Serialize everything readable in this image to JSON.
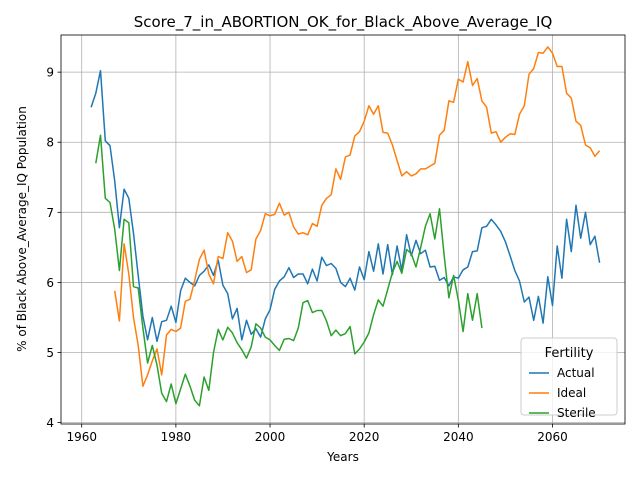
{
  "chart_data": {
    "type": "line",
    "title": "Score_7_in_ABORTION_OK_for_Black_Above_Average_IQ",
    "xlabel": "Years",
    "ylabel": "% of Black Above_Average_IQ Population",
    "xlim": [
      1955.6,
      2075.4
    ],
    "ylim": [
      3.98,
      9.53
    ],
    "xticks": [
      1960,
      1980,
      2000,
      2020,
      2040,
      2060
    ],
    "yticks": [
      4,
      5,
      6,
      7,
      8,
      9
    ],
    "grid": true,
    "legend": {
      "title": "Fertility",
      "placement": "lower right"
    },
    "series": [
      {
        "name": "Actual",
        "color": "#1f77b4",
        "x": [
          1962,
          1963,
          1964,
          1965,
          1966,
          1967,
          1968,
          1969,
          1970,
          1971,
          1972,
          1973,
          1974,
          1975,
          1976,
          1977,
          1978,
          1979,
          1980,
          1981,
          1982,
          1983,
          1984,
          1985,
          1986,
          1987,
          1988,
          1989,
          1990,
          1991,
          1992,
          1993,
          1994,
          1995,
          1996,
          1997,
          1998,
          1999,
          2000,
          2001,
          2002,
          2003,
          2004,
          2005,
          2006,
          2007,
          2008,
          2009,
          2010,
          2011,
          2012,
          2013,
          2014,
          2015,
          2016,
          2017,
          2018,
          2019,
          2020,
          2021,
          2022,
          2023,
          2024,
          2025,
          2026,
          2027,
          2028,
          2029,
          2030,
          2031,
          2032,
          2033,
          2034,
          2035,
          2036,
          2037,
          2038,
          2039,
          2040,
          2041,
          2042,
          2043,
          2044,
          2045,
          2046,
          2047,
          2048,
          2049,
          2050,
          2051,
          2052,
          2053,
          2054,
          2055,
          2056,
          2057,
          2058,
          2059,
          2060,
          2061,
          2062,
          2063,
          2064,
          2065,
          2066,
          2067,
          2068,
          2069,
          2070
        ],
        "y": [
          8.5,
          8.7,
          9.02,
          8.02,
          7.95,
          7.45,
          6.78,
          7.33,
          7.2,
          6.7,
          6.1,
          5.52,
          5.18,
          5.5,
          5.16,
          5.44,
          5.46,
          5.66,
          5.43,
          5.88,
          6.06,
          6.0,
          5.95,
          6.1,
          6.16,
          6.25,
          6.1,
          6.32,
          5.96,
          5.84,
          5.48,
          5.63,
          5.18,
          5.46,
          5.26,
          5.34,
          5.22,
          5.48,
          5.61,
          5.9,
          6.02,
          6.08,
          6.21,
          6.07,
          6.12,
          6.12,
          5.98,
          6.19,
          6.02,
          6.36,
          6.24,
          6.27,
          6.2,
          6.0,
          5.94,
          6.06,
          5.89,
          6.22,
          6.04,
          6.44,
          6.16,
          6.55,
          6.12,
          6.54,
          6.11,
          6.52,
          6.17,
          6.68,
          6.38,
          6.6,
          6.41,
          6.46,
          6.22,
          6.23,
          6.03,
          6.07,
          5.95,
          6.08,
          6.06,
          6.18,
          6.22,
          6.44,
          6.45,
          6.78,
          6.8,
          6.9,
          6.82,
          6.73,
          6.58,
          6.38,
          6.17,
          6.02,
          5.72,
          5.79,
          5.46,
          5.8,
          5.42,
          6.08,
          5.67,
          6.52,
          6.06,
          6.9,
          6.44,
          7.1,
          6.63,
          7.0,
          6.54,
          6.66,
          6.28
        ]
      },
      {
        "name": "Ideal",
        "color": "#ff7f0e",
        "x": [
          1967,
          1968,
          1969,
          1970,
          1971,
          1972,
          1973,
          1974,
          1975,
          1976,
          1977,
          1978,
          1979,
          1980,
          1981,
          1982,
          1983,
          1984,
          1985,
          1986,
          1987,
          1988,
          1989,
          1990,
          1991,
          1992,
          1993,
          1994,
          1995,
          1996,
          1997,
          1998,
          1999,
          2000,
          2001,
          2002,
          2003,
          2004,
          2005,
          2006,
          2007,
          2008,
          2009,
          2010,
          2011,
          2012,
          2013,
          2014,
          2015,
          2016,
          2017,
          2018,
          2019,
          2020,
          2021,
          2022,
          2023,
          2024,
          2025,
          2026,
          2027,
          2028,
          2029,
          2030,
          2031,
          2032,
          2033,
          2034,
          2035,
          2036,
          2037,
          2038,
          2039,
          2040,
          2041,
          2042,
          2043,
          2044,
          2045,
          2046,
          2047,
          2048,
          2049,
          2050,
          2051,
          2052,
          2053,
          2054,
          2055,
          2056,
          2057,
          2058,
          2059,
          2060,
          2061,
          2062,
          2063,
          2064,
          2065,
          2066,
          2067,
          2068,
          2069,
          2070
        ],
        "y": [
          5.88,
          5.45,
          6.55,
          6.12,
          5.5,
          5.1,
          4.52,
          4.68,
          4.88,
          5.05,
          4.68,
          5.25,
          5.33,
          5.3,
          5.35,
          5.73,
          5.76,
          6.03,
          6.33,
          6.46,
          6.12,
          5.98,
          6.37,
          6.34,
          6.71,
          6.59,
          6.3,
          6.37,
          6.14,
          6.18,
          6.62,
          6.74,
          6.98,
          6.95,
          6.97,
          7.13,
          6.96,
          7.0,
          6.79,
          6.69,
          6.71,
          6.68,
          6.84,
          6.8,
          7.1,
          7.2,
          7.25,
          7.62,
          7.47,
          7.79,
          7.82,
          8.09,
          8.15,
          8.3,
          8.52,
          8.4,
          8.52,
          8.14,
          8.13,
          7.96,
          7.74,
          7.52,
          7.58,
          7.52,
          7.55,
          7.62,
          7.62,
          7.66,
          7.7,
          8.1,
          8.17,
          8.59,
          8.57,
          8.9,
          8.86,
          9.15,
          8.81,
          8.91,
          8.59,
          8.5,
          8.13,
          8.15,
          8.0,
          8.07,
          8.12,
          8.11,
          8.4,
          8.52,
          8.97,
          9.05,
          9.28,
          9.27,
          9.36,
          9.27,
          9.08,
          9.08,
          8.7,
          8.63,
          8.3,
          8.24,
          7.96,
          7.92,
          7.8,
          7.88
        ]
      },
      {
        "name": "Sterile",
        "color": "#2ca02c",
        "x": [
          1963,
          1964,
          1965,
          1966,
          1967,
          1968,
          1969,
          1970,
          1971,
          1972,
          1973,
          1974,
          1975,
          1976,
          1977,
          1978,
          1979,
          1980,
          1981,
          1982,
          1983,
          1984,
          1985,
          1986,
          1987,
          1988,
          1989,
          1990,
          1991,
          1992,
          1993,
          1994,
          1995,
          1996,
          1997,
          1998,
          1999,
          2000,
          2001,
          2002,
          2003,
          2004,
          2005,
          2006,
          2007,
          2008,
          2009,
          2010,
          2011,
          2012,
          2013,
          2014,
          2015,
          2016,
          2017,
          2018,
          2019,
          2020,
          2021,
          2022,
          2023,
          2024,
          2025,
          2026,
          2027,
          2028,
          2029,
          2030,
          2031,
          2032,
          2033,
          2034,
          2035,
          2036,
          2037,
          2038,
          2039,
          2040,
          2041,
          2042,
          2043,
          2044,
          2045
        ],
        "y": [
          7.7,
          8.1,
          7.2,
          7.14,
          6.76,
          6.17,
          6.9,
          6.85,
          5.94,
          5.92,
          5.35,
          4.85,
          5.1,
          4.82,
          4.42,
          4.3,
          4.55,
          4.27,
          4.48,
          4.69,
          4.52,
          4.32,
          4.24,
          4.65,
          4.46,
          5.0,
          5.33,
          5.18,
          5.36,
          5.28,
          5.14,
          5.04,
          4.92,
          5.08,
          5.41,
          5.35,
          5.22,
          5.18,
          5.1,
          5.03,
          5.19,
          5.2,
          5.17,
          5.35,
          5.71,
          5.74,
          5.57,
          5.6,
          5.6,
          5.45,
          5.24,
          5.32,
          5.24,
          5.27,
          5.37,
          4.98,
          5.05,
          5.15,
          5.28,
          5.54,
          5.75,
          5.66,
          5.9,
          6.14,
          6.3,
          6.13,
          6.47,
          6.41,
          6.22,
          6.5,
          6.8,
          6.98,
          6.62,
          7.05,
          6.38,
          5.78,
          6.1,
          5.75,
          5.3,
          5.84,
          5.46,
          5.84,
          5.35
        ]
      }
    ]
  }
}
